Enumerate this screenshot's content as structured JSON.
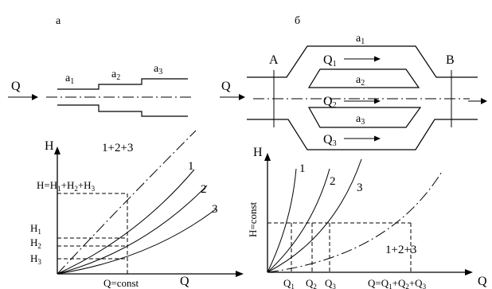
{
  "panel_a": {
    "label": "а",
    "flow_label": "Q",
    "segments": [
      "a",
      "a",
      "a"
    ],
    "segment_subs": [
      "1",
      "2",
      "3"
    ],
    "graph": {
      "ylabel": "H",
      "xlabel": "Q",
      "curve_labels": [
        "1",
        "2",
        "3"
      ],
      "sum_curve_label": "1+2+3",
      "total_head_label": "H=H",
      "total_head_parts": [
        "1",
        "+H",
        "2",
        "+H",
        "3"
      ],
      "head_labels": [
        "H",
        "H",
        "H"
      ],
      "head_subs": [
        "1",
        "2",
        "3"
      ],
      "q_const_label": "Q=const"
    }
  },
  "panel_b": {
    "label": "б",
    "flow_label": "Q",
    "node_a": "A",
    "node_b": "B",
    "branch_names": [
      "a",
      "a",
      "a"
    ],
    "branch_subs": [
      "1",
      "2",
      "3"
    ],
    "branch_flows": [
      "Q",
      "Q",
      "Q"
    ],
    "graph": {
      "ylabel": "H",
      "xlabel": "Q",
      "h_const_label": "H=const",
      "curve_labels": [
        "1",
        "2",
        "3"
      ],
      "sum_curve_label": "1+2+3",
      "q_ticks": [
        "Q",
        "Q",
        "Q"
      ],
      "q_tick_subs": [
        "1",
        "2",
        "3"
      ],
      "q_total_label": "Q=Q",
      "q_total_parts": [
        "1",
        "+Q",
        "2",
        "+Q",
        "3"
      ]
    }
  }
}
